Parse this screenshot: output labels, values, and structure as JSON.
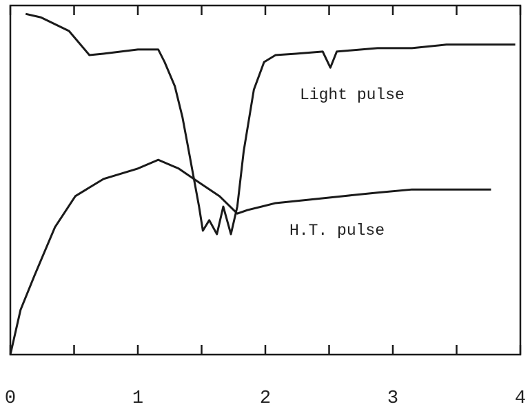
{
  "chart_data": {
    "type": "line",
    "series": [
      {
        "name": "Light pulse",
        "color": "#1a1a1a",
        "x": [
          0.12,
          0.24,
          0.46,
          0.62,
          0.73,
          1.0,
          1.16,
          1.21,
          1.29,
          1.35,
          1.39,
          1.43,
          1.48,
          1.51,
          1.56,
          1.62,
          1.67,
          1.73,
          1.78,
          1.83,
          1.91,
          1.99,
          2.08,
          2.24,
          2.45,
          2.51,
          2.56,
          2.88,
          3.15,
          3.42,
          3.69,
          3.96
        ],
        "values": [
          97.6,
          96.6,
          92.7,
          85.8,
          86.2,
          87.4,
          87.4,
          83.8,
          76.9,
          68.0,
          60.2,
          52.3,
          42.4,
          35.5,
          38.5,
          34.5,
          42.4,
          34.5,
          42.4,
          58.2,
          75.9,
          83.8,
          85.8,
          86.2,
          86.8,
          82.2,
          86.8,
          87.8,
          87.8,
          88.8,
          88.8,
          88.8
        ]
      },
      {
        "name": "H.T. pulse",
        "color": "#1a1a1a",
        "x": [
          0,
          0.08,
          0.19,
          0.35,
          0.51,
          0.73,
          1.0,
          1.16,
          1.32,
          1.48,
          1.64,
          1.78,
          1.86,
          2.08,
          2.35,
          2.61,
          2.88,
          3.15,
          3.42,
          3.77
        ],
        "values": [
          0,
          12.8,
          22.7,
          36.5,
          45.4,
          50.3,
          53.3,
          55.8,
          53.3,
          49.3,
          45.4,
          40.4,
          41.4,
          43.4,
          44.4,
          45.4,
          46.4,
          47.3,
          47.3,
          47.3
        ]
      }
    ],
    "xlim": [
      0,
      4
    ],
    "ylim": [
      0,
      100
    ],
    "xticks": [
      0,
      1,
      2,
      3,
      4
    ],
    "xminorticks": [
      0.5,
      1.5,
      2.5,
      3.5
    ]
  }
}
